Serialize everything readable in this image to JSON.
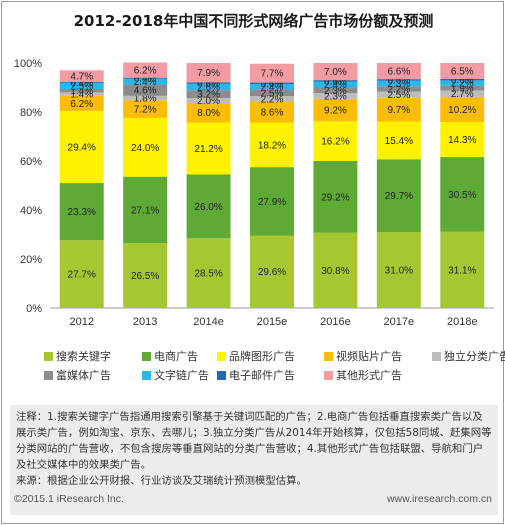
{
  "chart_data": {
    "type": "bar",
    "stacked": true,
    "title": "2012-2018年中国不同形式网络广告市场份额及预测",
    "categories": [
      "2012",
      "2013",
      "2014e",
      "2015e",
      "2016e",
      "2017e",
      "2018e"
    ],
    "ylim": [
      0,
      100
    ],
    "yticks": [
      "0%",
      "20%",
      "40%",
      "60%",
      "80%",
      "100%"
    ],
    "grid": false,
    "legend_position": "bottom",
    "series": [
      {
        "name": "搜索关键字",
        "color": "#a5c832",
        "values": [
          27.7,
          26.5,
          28.5,
          29.6,
          30.8,
          31.0,
          31.1
        ]
      },
      {
        "name": "电商广告",
        "color": "#5fa937",
        "values": [
          23.3,
          27.1,
          26.0,
          27.9,
          29.2,
          29.7,
          30.5
        ]
      },
      {
        "name": "品牌图形广告",
        "color": "#fef200",
        "values": [
          29.4,
          24.0,
          21.2,
          18.2,
          16.2,
          15.4,
          14.3
        ]
      },
      {
        "name": "视频贴片广告",
        "color": "#fbbd08",
        "values": [
          6.2,
          7.2,
          8.0,
          8.6,
          9.2,
          9.7,
          10.2
        ]
      },
      {
        "name": "独立分类广告",
        "color": "#bcbcbc",
        "values": [
          1.4,
          1.8,
          2.0,
          2.2,
          2.3,
          2.5,
          2.7
        ]
      },
      {
        "name": "富媒体广告",
        "color": "#8c8c8c",
        "values": [
          1.4,
          4.6,
          3.2,
          2.5,
          2.3,
          2.2,
          1.9
        ]
      },
      {
        "name": "文字链广告",
        "color": "#2bb8e8",
        "values": [
          2.5,
          2.4,
          2.6,
          2.4,
          2.4,
          2.3,
          2.2
        ]
      },
      {
        "name": "电子邮件广告",
        "color": "#1e6bb8",
        "values": [
          0.4,
          0.4,
          0.6,
          0.6,
          0.6,
          0.6,
          0.6
        ]
      },
      {
        "name": "其他形式广告",
        "color": "#f29ba3",
        "values": [
          4.7,
          6.2,
          7.9,
          7.7,
          7.0,
          6.6,
          6.5
        ]
      }
    ],
    "data_labels": {
      "搜索关键字": [
        "27.7%",
        "26.5%",
        "28.5%",
        "29.6%",
        "30.8%",
        "31.0%",
        "31.1%"
      ],
      "电商广告": [
        "23.3%",
        "27.1%",
        "26.0%",
        "27.9%",
        "29.2%",
        "29.7%",
        "30.5%"
      ],
      "品牌图形广告": [
        "29.4%",
        "24.0%",
        "21.2%",
        "18.2%",
        "16.2%",
        "15.4%",
        "14.3%"
      ],
      "视频贴片广告": [
        "6.2%",
        "7.2%",
        "8.0%",
        "8.6%",
        "9.2%",
        "9.7%",
        "10.2%"
      ],
      "独立分类广告": [
        "1.4%",
        "1.8%",
        "2.0%",
        "2.2%",
        "2.3%",
        "2.5%",
        "2.7%"
      ],
      "富媒体广告": [
        "1.4%",
        "4.6%",
        "3.2%",
        "2.5%",
        "2.3%",
        "2.2%",
        "1.9%"
      ],
      "文字链广告": [
        "2.5%",
        "2.4%",
        "2.6%",
        "2.4%",
        "2.4%",
        "2.3%",
        "2.2%"
      ],
      "电子邮件广告": [
        "0.4%",
        "0.4%",
        "0.6%",
        "0.6%",
        "0.6%",
        "0.6%",
        "0.6%"
      ],
      "其他形式广告": [
        "4.7%",
        "6.2%",
        "7.9%",
        "7.7%",
        "7.0%",
        "6.6%",
        "6.5%"
      ]
    }
  },
  "notes": {
    "line1": "注释：1.搜索关键字广告指通用搜索引擎基于关键词匹配的广告；2.电商广告包括垂直搜索类广告以及展示类广告，例如淘宝、京东、去哪儿；3.独立分类广告从2014年开始核算，仅包括58同城、赶集网等分类网站的广告营收，不包含搜房等垂直网站的分类广告营收；4.其他形式广告包括联盟、导航和门户及社交媒体中的效果类广告。",
    "source": "来源：根据企业公开财报、行业访谈及艾瑞统计预测模型估算。"
  },
  "footer": {
    "copyright": "©2015.1 iResearch Inc.",
    "website": "www.iresearch.com.cn"
  }
}
